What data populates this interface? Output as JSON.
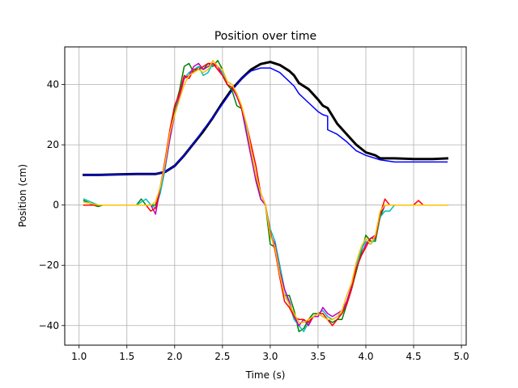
{
  "chart_data": {
    "type": "line",
    "title": "Position over time",
    "xlabel": "Time (s)",
    "ylabel": "Position (cm)",
    "xlim": [
      0.85,
      5.05
    ],
    "ylim": [
      -46.5,
      52.5
    ],
    "xticks": [
      1.0,
      1.5,
      2.0,
      2.5,
      3.0,
      3.5,
      4.0,
      4.5,
      5.0
    ],
    "xtick_labels": [
      "1.0",
      "1.5",
      "2.0",
      "2.5",
      "3.0",
      "3.5",
      "4.0",
      "4.5",
      "5.0"
    ],
    "yticks": [
      -40,
      -20,
      0,
      20,
      40
    ],
    "ytick_labels": [
      "−40",
      "−20",
      "0",
      "20",
      "40"
    ],
    "grid": true,
    "series": [
      {
        "color": "#000000",
        "width": 3,
        "x": [
          1.05,
          1.2,
          1.4,
          1.6,
          1.8,
          1.9,
          2.0,
          2.1,
          2.2,
          2.3,
          2.4,
          2.5,
          2.6,
          2.7,
          2.8,
          2.9,
          3.0,
          3.1,
          3.2,
          3.25,
          3.3,
          3.4,
          3.5,
          3.55,
          3.6,
          3.7,
          3.8,
          3.9,
          4.0,
          4.1,
          4.15,
          4.3,
          4.5,
          4.7,
          4.85
        ],
        "y": [
          10,
          10,
          10.2,
          10.3,
          10.3,
          11,
          13,
          16.5,
          20.5,
          24.5,
          29,
          34,
          38.5,
          42,
          45,
          46.8,
          47.5,
          46.5,
          44.5,
          43,
          40.5,
          38.5,
          35,
          33,
          32.2,
          27,
          23.5,
          20,
          17.5,
          16.5,
          15.5,
          15.5,
          15.3,
          15.3,
          15.5
        ]
      },
      {
        "color": "#0000ff",
        "width": 1.5,
        "x": [
          1.05,
          1.2,
          1.4,
          1.6,
          1.8,
          1.9,
          2.0,
          2.1,
          2.2,
          2.3,
          2.4,
          2.5,
          2.6,
          2.7,
          2.8,
          2.9,
          3.0,
          3.1,
          3.2,
          3.25,
          3.3,
          3.4,
          3.5,
          3.55,
          3.6,
          3.6,
          3.7,
          3.8,
          3.9,
          4.0,
          4.1,
          4.15,
          4.3,
          4.5,
          4.7,
          4.85
        ],
        "y": [
          10,
          10,
          10.2,
          10.3,
          10.3,
          11,
          13,
          16.5,
          20.5,
          25,
          29,
          33.5,
          38,
          42,
          44.5,
          45.5,
          45.5,
          44,
          41,
          39.5,
          37,
          34,
          31,
          30,
          29.5,
          25,
          23.5,
          21,
          18,
          16.5,
          15.5,
          15,
          14.3,
          14.3,
          14.3,
          14.3
        ]
      },
      {
        "color": "#008000",
        "width": 1.5,
        "x": [
          1.05,
          1.15,
          1.2,
          1.25,
          1.3,
          1.4,
          1.5,
          1.6,
          1.65,
          1.7,
          1.75,
          1.8,
          1.85,
          1.9,
          1.95,
          2.0,
          2.05,
          2.1,
          2.15,
          2.2,
          2.25,
          2.3,
          2.35,
          2.4,
          2.45,
          2.5,
          2.55,
          2.6,
          2.65,
          2.7,
          2.75,
          2.8,
          2.85,
          2.9,
          2.95,
          3.0,
          3.05,
          3.1,
          3.15,
          3.2,
          3.25,
          3.3,
          3.35,
          3.4,
          3.45,
          3.5,
          3.55,
          3.6,
          3.65,
          3.7,
          3.75,
          3.8,
          3.85,
          3.9,
          3.95,
          4.0,
          4.05,
          4.1,
          4.15,
          4.2,
          4.25,
          4.3,
          4.4,
          4.5,
          4.55,
          4.6,
          4.7,
          4.85
        ],
        "y": [
          1.5,
          0,
          -0.5,
          0,
          0,
          0,
          0,
          0,
          2,
          0,
          0,
          0,
          6,
          14,
          23,
          32,
          38,
          46,
          47,
          44,
          46,
          45,
          47,
          46,
          48,
          45,
          40,
          38,
          33,
          32,
          24,
          16,
          10,
          2,
          0,
          -13,
          -14,
          -24,
          -30,
          -30,
          -35,
          -42,
          -41,
          -38,
          -36,
          -36,
          -37,
          -38,
          -39,
          -38,
          -38,
          -33,
          -28,
          -22,
          -16,
          -10,
          -12,
          -12,
          -4,
          0,
          0,
          0,
          0,
          0,
          0,
          0,
          0,
          0
        ]
      },
      {
        "color": "#00bfbf",
        "width": 1.5,
        "x": [
          1.05,
          1.2,
          1.4,
          1.6,
          1.7,
          1.75,
          1.8,
          1.85,
          1.9,
          1.95,
          2.0,
          2.05,
          2.1,
          2.15,
          2.2,
          2.25,
          2.3,
          2.35,
          2.4,
          2.45,
          2.5,
          2.55,
          2.6,
          2.65,
          2.7,
          2.75,
          2.8,
          2.85,
          2.9,
          2.95,
          3.0,
          3.05,
          3.1,
          3.15,
          3.2,
          3.25,
          3.3,
          3.35,
          3.4,
          3.45,
          3.5,
          3.55,
          3.6,
          3.65,
          3.7,
          3.75,
          3.8,
          3.85,
          3.9,
          3.95,
          4.0,
          4.05,
          4.1,
          4.15,
          4.2,
          4.25,
          4.3,
          4.4,
          4.5,
          4.7,
          4.85
        ],
        "y": [
          2,
          0,
          0,
          0,
          2,
          0,
          -1,
          4,
          12,
          22,
          30,
          37,
          42,
          44,
          45,
          46,
          43,
          44,
          47,
          46,
          44,
          41,
          40,
          37,
          32,
          26,
          18,
          10,
          4,
          0,
          -8,
          -12,
          -20,
          -28,
          -33,
          -38,
          -40,
          -42,
          -39,
          -37,
          -36,
          -35,
          -37,
          -38,
          -37,
          -36,
          -32,
          -27,
          -20,
          -15,
          -12,
          -13,
          -11,
          -4,
          -2,
          -2,
          0,
          0,
          0,
          0,
          0
        ]
      },
      {
        "color": "#bf00bf",
        "width": 1.5,
        "x": [
          1.05,
          1.2,
          1.4,
          1.6,
          1.7,
          1.75,
          1.8,
          1.85,
          1.9,
          1.95,
          2.0,
          2.05,
          2.1,
          2.15,
          2.2,
          2.25,
          2.3,
          2.35,
          2.4,
          2.45,
          2.5,
          2.55,
          2.6,
          2.65,
          2.7,
          2.75,
          2.8,
          2.85,
          2.9,
          2.95,
          3.0,
          3.05,
          3.1,
          3.15,
          3.2,
          3.25,
          3.3,
          3.35,
          3.4,
          3.45,
          3.5,
          3.55,
          3.6,
          3.65,
          3.7,
          3.75,
          3.8,
          3.85,
          3.9,
          3.95,
          4.0,
          4.05,
          4.1,
          4.15,
          4.2,
          4.25,
          4.3,
          4.4,
          4.5,
          4.7,
          4.85
        ],
        "y": [
          0,
          0,
          0,
          0,
          0,
          0,
          -3,
          6,
          13,
          22,
          30,
          36,
          42,
          43,
          46,
          47,
          45,
          46,
          47,
          46,
          43,
          40,
          39,
          36,
          32,
          24,
          16,
          8,
          2,
          0,
          -10,
          -13,
          -22,
          -28,
          -32,
          -37,
          -40,
          -38,
          -40,
          -37,
          -37,
          -34,
          -36,
          -37,
          -36,
          -35,
          -32,
          -27,
          -21,
          -17,
          -13,
          -11,
          -10,
          -3,
          0,
          0,
          0,
          0,
          0,
          0,
          0
        ]
      },
      {
        "color": "#ff0000",
        "width": 1.5,
        "x": [
          1.05,
          1.2,
          1.4,
          1.6,
          1.7,
          1.75,
          1.8,
          1.85,
          1.9,
          1.95,
          2.0,
          2.05,
          2.1,
          2.15,
          2.2,
          2.25,
          2.3,
          2.35,
          2.4,
          2.45,
          2.5,
          2.55,
          2.6,
          2.65,
          2.7,
          2.75,
          2.8,
          2.85,
          2.9,
          2.95,
          3.0,
          3.05,
          3.1,
          3.15,
          3.2,
          3.25,
          3.3,
          3.35,
          3.4,
          3.45,
          3.5,
          3.55,
          3.6,
          3.65,
          3.7,
          3.75,
          3.8,
          3.85,
          3.9,
          3.95,
          4.0,
          4.05,
          4.1,
          4.15,
          4.2,
          4.25,
          4.3,
          4.4,
          4.5,
          4.55,
          4.6,
          4.7,
          4.85
        ],
        "y": [
          0,
          0,
          0,
          0,
          0,
          -2,
          -1,
          6,
          15,
          25,
          33,
          37,
          43,
          42,
          45,
          45,
          46,
          47,
          47,
          45,
          43,
          40,
          39,
          37,
          32,
          27,
          20,
          13,
          4,
          0,
          -9,
          -15,
          -24,
          -32,
          -34,
          -37,
          -38,
          -38,
          -39,
          -37,
          -36,
          -36,
          -38,
          -40,
          -38,
          -36,
          -33,
          -28,
          -21,
          -17,
          -14,
          -11,
          -11,
          -3,
          2,
          0,
          0,
          0,
          0,
          1.5,
          0,
          0,
          0
        ]
      },
      {
        "color": "#ffbf00",
        "width": 1.5,
        "x": [
          1.05,
          1.2,
          1.4,
          1.6,
          1.7,
          1.75,
          1.8,
          1.85,
          1.9,
          1.95,
          2.0,
          2.05,
          2.1,
          2.15,
          2.2,
          2.25,
          2.3,
          2.35,
          2.4,
          2.45,
          2.5,
          2.55,
          2.6,
          2.65,
          2.7,
          2.75,
          2.8,
          2.85,
          2.9,
          2.95,
          3.0,
          3.05,
          3.1,
          3.15,
          3.2,
          3.25,
          3.3,
          3.35,
          3.4,
          3.45,
          3.5,
          3.55,
          3.6,
          3.65,
          3.7,
          3.75,
          3.8,
          3.85,
          3.9,
          3.95,
          4.0,
          4.05,
          4.1,
          4.15,
          4.2,
          4.25,
          4.3,
          4.4,
          4.5,
          4.7,
          4.85
        ],
        "y": [
          1,
          0,
          0,
          0,
          0,
          0,
          1,
          6,
          14,
          24,
          30,
          35,
          40,
          43,
          44,
          45,
          44,
          45,
          48,
          46,
          45,
          41,
          40,
          37,
          33,
          27,
          18,
          10,
          4,
          0,
          -10,
          -14,
          -23,
          -30,
          -33,
          -36,
          -39,
          -39,
          -38,
          -37,
          -36,
          -37,
          -38,
          -38,
          -37,
          -35,
          -30,
          -26,
          -19,
          -14,
          -11,
          -13,
          -10,
          -2,
          0,
          0,
          0,
          0,
          0,
          0,
          0
        ]
      }
    ]
  }
}
